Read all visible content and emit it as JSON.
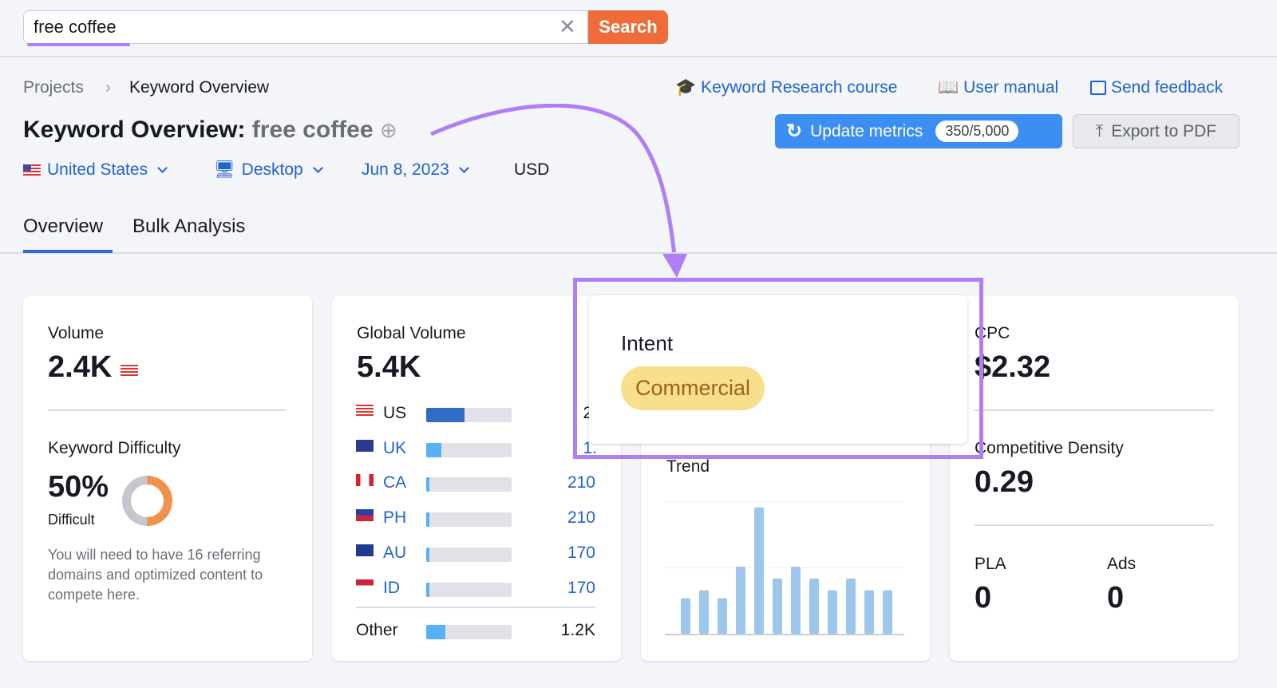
{
  "search": {
    "value": "free coffee",
    "button": "Search",
    "clear_icon": "close-icon"
  },
  "breadcrumb": {
    "items": [
      "Projects",
      "Keyword Overview"
    ]
  },
  "links": {
    "course": "Keyword Research course",
    "manual": "User manual",
    "feedback": "Send feedback"
  },
  "header": {
    "title": "Keyword Overview:",
    "keyword": "free coffee"
  },
  "filters": {
    "country": "United States",
    "device": "Desktop",
    "date": "Jun 8, 2023",
    "currency": "USD"
  },
  "actions": {
    "update": "Update metrics",
    "quota": "350/5,000",
    "export": "Export to PDF"
  },
  "tabs": [
    {
      "label": "Overview",
      "active": true
    },
    {
      "label": "Bulk Analysis"
    }
  ],
  "volume": {
    "label": "Volume",
    "value": "2.4K"
  },
  "kd": {
    "label": "Keyword Difficulty",
    "value": "50%",
    "level": "Difficult",
    "percent": 50,
    "note": "You will need to have 16 referring domains and optimized content to compete here."
  },
  "global": {
    "label": "Global Volume",
    "value": "5.4K",
    "rows": [
      {
        "code": "US",
        "value": "2.",
        "share": 45,
        "color": "#2e6cc7"
      },
      {
        "code": "UK",
        "value": "1.",
        "share": 18
      },
      {
        "code": "CA",
        "value": "210",
        "share": 4
      },
      {
        "code": "PH",
        "value": "210",
        "share": 4
      },
      {
        "code": "AU",
        "value": "170",
        "share": 4
      },
      {
        "code": "ID",
        "value": "170",
        "share": 4
      }
    ],
    "other": {
      "label": "Other",
      "value": "1.2K",
      "share": 22
    }
  },
  "intent": {
    "label": "Intent",
    "value": "Commercial"
  },
  "trend": {
    "label": "Trend",
    "chart_data": {
      "type": "bar",
      "values": [
        27,
        33,
        27,
        51,
        96,
        42,
        51,
        42,
        33,
        42,
        33,
        33
      ],
      "ylim": [
        0,
        100
      ],
      "color": "#9dc6ec"
    }
  },
  "cpc": {
    "label": "CPC",
    "value": "$2.32"
  },
  "density": {
    "label": "Competitive Density",
    "value": "0.29"
  },
  "pla": {
    "label": "PLA",
    "value": "0"
  },
  "ads": {
    "label": "Ads",
    "value": "0"
  },
  "colors": {
    "accent": "#ef6c3a",
    "primary": "#3c8ef2",
    "link": "#1f63cc",
    "highlight": "#b07ff5"
  }
}
